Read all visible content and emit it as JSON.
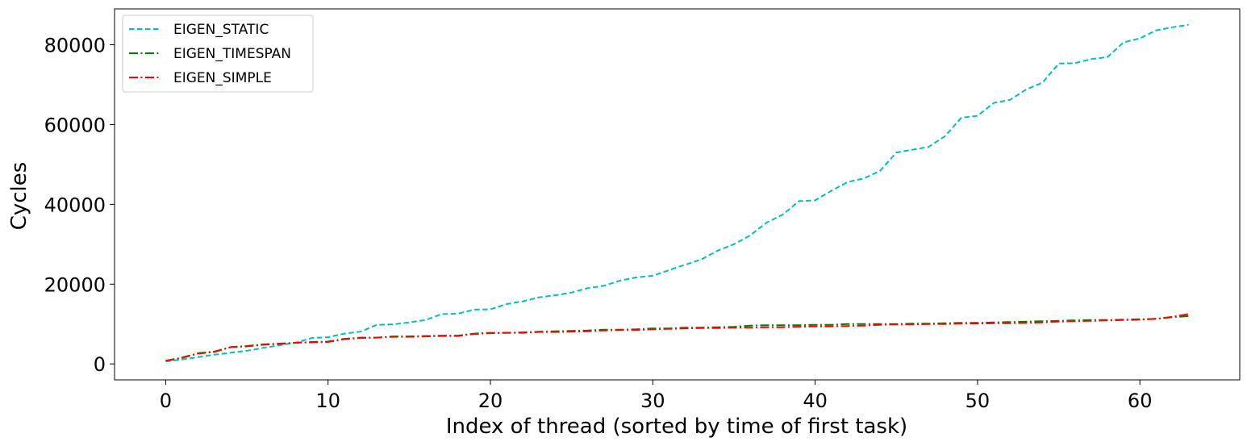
{
  "chart_data": {
    "type": "line",
    "xlabel": "Index of thread (sorted by time of first task)",
    "ylabel": "Cycles",
    "xlim": [
      -3.15,
      66.15
    ],
    "ylim": [
      -4000,
      89000
    ],
    "xticks": [
      0,
      10,
      20,
      30,
      40,
      50,
      60
    ],
    "yticks": [
      0,
      20000,
      40000,
      60000,
      80000
    ],
    "xtick_labels": [
      "0",
      "10",
      "20",
      "30",
      "40",
      "50",
      "60"
    ],
    "ytick_labels": [
      "0",
      "20000",
      "40000",
      "60000",
      "80000"
    ],
    "grid": false,
    "legend_position": "top-left",
    "series": [
      {
        "name": "EIGEN_STATIC",
        "color": "#00BFBF",
        "dash": "dashed",
        "values": [
          600,
          1100,
          1700,
          2300,
          2800,
          3300,
          4000,
          4700,
          5300,
          6500,
          6700,
          7600,
          8100,
          9800,
          9900,
          10400,
          11000,
          12500,
          12600,
          13600,
          13700,
          15000,
          15700,
          16700,
          17200,
          17900,
          19000,
          19600,
          20900,
          21700,
          22100,
          23500,
          24900,
          26200,
          28400,
          30000,
          32200,
          35400,
          37400,
          40800,
          41000,
          43400,
          45600,
          46500,
          48400,
          53000,
          53700,
          54400,
          57100,
          61700,
          62200,
          65400,
          66200,
          68800,
          70500,
          75300,
          75400,
          76400,
          76900,
          80600,
          81600,
          83600,
          84400,
          85000
        ]
      },
      {
        "name": "EIGEN_TIMESPAN",
        "color": "#008000",
        "dash": "dashdot",
        "values": [
          800,
          1600,
          2700,
          3100,
          4200,
          4500,
          4900,
          5100,
          5300,
          5500,
          5600,
          6300,
          6600,
          6600,
          6900,
          6900,
          7000,
          7100,
          7100,
          7600,
          7800,
          7800,
          7900,
          8100,
          8200,
          8300,
          8400,
          8600,
          8600,
          8700,
          8900,
          8900,
          9100,
          9100,
          9200,
          9300,
          9600,
          9700,
          9700,
          9700,
          9800,
          9800,
          10000,
          10000,
          10000,
          10000,
          10100,
          10100,
          10200,
          10300,
          10300,
          10400,
          10500,
          10600,
          10700,
          10800,
          10900,
          11000,
          11000,
          11100,
          11200,
          11300,
          11700,
          12000
        ]
      },
      {
        "name": "EIGEN_SIMPLE",
        "color": "#FF0000",
        "dash": "dashdot",
        "values": [
          800,
          1500,
          2600,
          3000,
          4200,
          4400,
          4800,
          5000,
          5300,
          5400,
          5500,
          6200,
          6500,
          6600,
          6800,
          6800,
          6900,
          7000,
          7000,
          7500,
          7700,
          7800,
          7800,
          8000,
          8000,
          8100,
          8200,
          8400,
          8500,
          8500,
          8700,
          8800,
          8900,
          9000,
          9000,
          9100,
          9100,
          9200,
          9200,
          9300,
          9400,
          9400,
          9500,
          9600,
          9800,
          9900,
          9900,
          10000,
          10000,
          10100,
          10100,
          10200,
          10200,
          10300,
          10400,
          10600,
          10700,
          10800,
          10900,
          11000,
          11100,
          11300,
          11800,
          12500
        ]
      }
    ]
  }
}
